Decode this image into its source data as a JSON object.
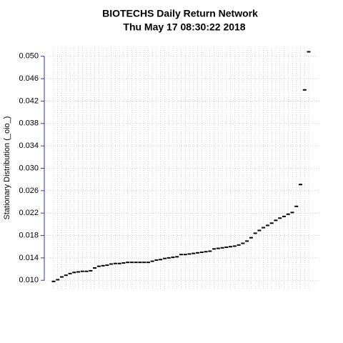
{
  "chart_data": {
    "type": "dash",
    "title": "BIOTECHS  Daily Return Network",
    "subtitle": "Thu May 17 08:30:22 2018",
    "y_label": "Stationary Distribution (_oio_)",
    "categories": [
      null,
      null,
      null,
      null,
      null,
      null,
      null,
      null,
      null,
      null,
      null,
      null,
      null,
      null,
      null,
      null,
      null,
      null,
      null,
      null,
      null,
      null,
      null,
      null,
      null,
      null,
      null,
      null,
      null,
      null,
      null,
      null,
      null,
      null,
      null,
      null,
      null,
      null,
      null,
      null,
      null,
      null,
      null,
      null,
      null,
      null,
      null,
      null,
      null,
      null,
      null,
      null,
      null,
      null,
      null,
      null,
      null,
      null,
      null,
      null,
      null,
      null,
      null
    ],
    "values": [
      0.0098,
      0.0101,
      0.0106,
      0.0109,
      0.0112,
      0.0114,
      0.0115,
      0.0116,
      0.0116,
      0.0117,
      0.0122,
      0.0125,
      0.0126,
      0.0127,
      0.0129,
      0.013,
      0.013,
      0.0131,
      0.0132,
      0.0132,
      0.0132,
      0.0132,
      0.0132,
      0.0132,
      0.0134,
      0.0136,
      0.0137,
      0.0139,
      0.014,
      0.0141,
      0.0142,
      0.0146,
      0.0146,
      0.0147,
      0.0148,
      0.0149,
      0.015,
      0.0151,
      0.0152,
      0.0156,
      0.0157,
      0.0158,
      0.0159,
      0.016,
      0.0161,
      0.0163,
      0.0166,
      0.017,
      0.0176,
      0.0184,
      0.0189,
      0.0194,
      0.0198,
      0.0202,
      0.0207,
      0.0211,
      0.0214,
      0.0218,
      0.0221,
      0.0232,
      0.0271,
      0.044,
      0.0508
    ],
    "color": "#000000",
    "axis_color": "#3333aa",
    "ylim": [
      0.0085,
      0.0515
    ],
    "yticks": [
      {
        "value": 0.01,
        "label": "0.010"
      },
      {
        "value": 0.014,
        "label": "0.014"
      },
      {
        "value": 0.018,
        "label": "0.018"
      },
      {
        "value": 0.022,
        "label": "0.022"
      },
      {
        "value": 0.026,
        "label": "0.026"
      },
      {
        "value": 0.03,
        "label": "0.030"
      },
      {
        "value": 0.034,
        "label": "0.034"
      },
      {
        "value": 0.038,
        "label": "0.038"
      },
      {
        "value": 0.042,
        "label": "0.042"
      },
      {
        "value": 0.046,
        "label": "0.046"
      },
      {
        "value": 0.05,
        "label": "0.050"
      }
    ],
    "grid": true
  }
}
